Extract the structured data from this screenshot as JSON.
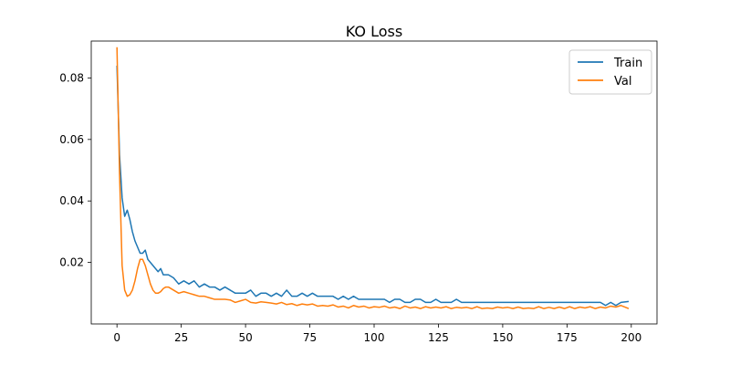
{
  "chart_data": {
    "type": "line",
    "title": "KO Loss",
    "xlabel": "",
    "ylabel": "",
    "xlim": [
      -10,
      210
    ],
    "ylim": [
      0.0,
      0.092
    ],
    "xticks": [
      0,
      25,
      50,
      75,
      100,
      125,
      150,
      175,
      200
    ],
    "yticks": [
      0.02,
      0.04,
      0.06,
      0.08
    ],
    "grid": false,
    "legend": "upper-right",
    "series": [
      {
        "name": "Train",
        "color": "#1f77b4",
        "x": [
          0,
          1,
          2,
          3,
          4,
          5,
          6,
          7,
          8,
          9,
          10,
          11,
          12,
          13,
          14,
          15,
          16,
          17,
          18,
          19,
          20,
          22,
          24,
          26,
          28,
          30,
          32,
          34,
          36,
          38,
          40,
          42,
          44,
          46,
          48,
          50,
          52,
          54,
          56,
          58,
          60,
          62,
          64,
          66,
          68,
          70,
          72,
          74,
          76,
          78,
          80,
          82,
          84,
          86,
          88,
          90,
          92,
          94,
          96,
          98,
          100,
          102,
          104,
          106,
          108,
          110,
          112,
          114,
          116,
          118,
          120,
          122,
          124,
          126,
          128,
          130,
          132,
          134,
          136,
          138,
          140,
          142,
          144,
          146,
          148,
          150,
          152,
          154,
          156,
          158,
          160,
          162,
          164,
          166,
          168,
          170,
          172,
          174,
          176,
          178,
          180,
          182,
          184,
          186,
          188,
          190,
          192,
          194,
          196,
          199
        ],
        "y": [
          0.084,
          0.055,
          0.041,
          0.035,
          0.037,
          0.034,
          0.03,
          0.027,
          0.025,
          0.023,
          0.023,
          0.024,
          0.021,
          0.02,
          0.019,
          0.018,
          0.017,
          0.018,
          0.016,
          0.016,
          0.016,
          0.015,
          0.013,
          0.014,
          0.013,
          0.014,
          0.012,
          0.013,
          0.012,
          0.012,
          0.011,
          0.012,
          0.011,
          0.01,
          0.01,
          0.01,
          0.011,
          0.009,
          0.01,
          0.01,
          0.009,
          0.01,
          0.009,
          0.011,
          0.009,
          0.009,
          0.01,
          0.009,
          0.01,
          0.009,
          0.009,
          0.009,
          0.009,
          0.008,
          0.009,
          0.008,
          0.009,
          0.008,
          0.008,
          0.008,
          0.008,
          0.008,
          0.008,
          0.007,
          0.008,
          0.008,
          0.007,
          0.007,
          0.008,
          0.008,
          0.007,
          0.007,
          0.008,
          0.007,
          0.007,
          0.007,
          0.008,
          0.007,
          0.007,
          0.007,
          0.007,
          0.007,
          0.007,
          0.007,
          0.007,
          0.007,
          0.007,
          0.007,
          0.007,
          0.007,
          0.007,
          0.007,
          0.007,
          0.007,
          0.007,
          0.007,
          0.007,
          0.007,
          0.007,
          0.007,
          0.007,
          0.007,
          0.007,
          0.007,
          0.007,
          0.006,
          0.007,
          0.006,
          0.007,
          0.0073
        ]
      },
      {
        "name": "Val",
        "color": "#ff7f0e",
        "x": [
          0,
          1,
          2,
          3,
          4,
          5,
          6,
          7,
          8,
          9,
          10,
          11,
          12,
          13,
          14,
          15,
          16,
          17,
          18,
          19,
          20,
          22,
          24,
          26,
          28,
          30,
          32,
          34,
          36,
          38,
          40,
          42,
          44,
          46,
          48,
          50,
          52,
          54,
          56,
          58,
          60,
          62,
          64,
          66,
          68,
          70,
          72,
          74,
          76,
          78,
          80,
          82,
          84,
          86,
          88,
          90,
          92,
          94,
          96,
          98,
          100,
          102,
          104,
          106,
          108,
          110,
          112,
          114,
          116,
          118,
          120,
          122,
          124,
          126,
          128,
          130,
          132,
          134,
          136,
          138,
          140,
          142,
          144,
          146,
          148,
          150,
          152,
          154,
          156,
          158,
          160,
          162,
          164,
          166,
          168,
          170,
          172,
          174,
          176,
          178,
          180,
          182,
          184,
          186,
          188,
          190,
          192,
          194,
          196,
          199
        ],
        "y": [
          0.09,
          0.049,
          0.019,
          0.011,
          0.009,
          0.0095,
          0.011,
          0.014,
          0.018,
          0.021,
          0.021,
          0.019,
          0.016,
          0.013,
          0.011,
          0.01,
          0.01,
          0.0105,
          0.0115,
          0.012,
          0.012,
          0.011,
          0.01,
          0.0105,
          0.01,
          0.0095,
          0.009,
          0.009,
          0.0085,
          0.008,
          0.008,
          0.008,
          0.0078,
          0.007,
          0.0075,
          0.008,
          0.007,
          0.0068,
          0.0072,
          0.007,
          0.0068,
          0.0065,
          0.007,
          0.0063,
          0.0066,
          0.006,
          0.0065,
          0.0062,
          0.0065,
          0.0058,
          0.006,
          0.0058,
          0.0062,
          0.0055,
          0.0058,
          0.0052,
          0.006,
          0.0055,
          0.0058,
          0.0052,
          0.0056,
          0.0054,
          0.0058,
          0.0052,
          0.0055,
          0.005,
          0.0058,
          0.0052,
          0.0055,
          0.005,
          0.0056,
          0.0052,
          0.0055,
          0.0052,
          0.0056,
          0.005,
          0.0054,
          0.0052,
          0.0054,
          0.005,
          0.0056,
          0.005,
          0.0052,
          0.005,
          0.0055,
          0.0052,
          0.0054,
          0.005,
          0.0055,
          0.005,
          0.0052,
          0.005,
          0.0056,
          0.005,
          0.0054,
          0.005,
          0.0055,
          0.005,
          0.0056,
          0.005,
          0.0055,
          0.0052,
          0.0056,
          0.005,
          0.0055,
          0.0052,
          0.0058,
          0.0055,
          0.006,
          0.005
        ]
      }
    ]
  }
}
